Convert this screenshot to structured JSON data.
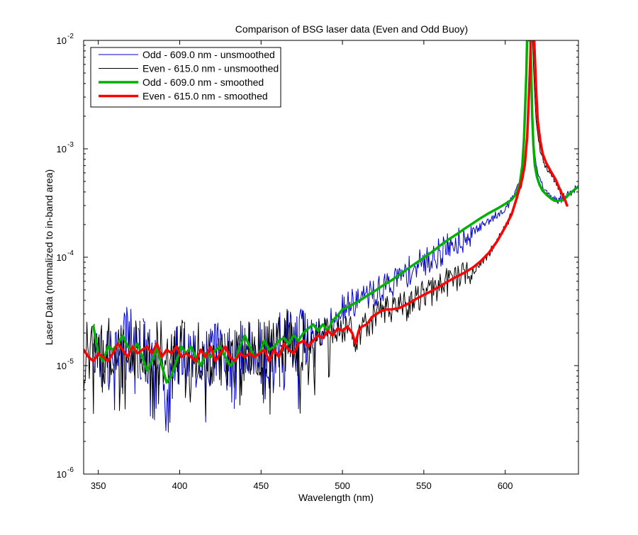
{
  "chart_data": {
    "type": "line",
    "title": "Comparison of BSG laser data (Even and Odd Buoy)",
    "xlabel": "Wavelength (nm)",
    "ylabel": "Laser Data (normalized to in-band area)",
    "xlim": [
      341,
      645
    ],
    "ylim": [
      1e-06,
      0.01
    ],
    "yscale": "log",
    "x_ticks": [
      350,
      400,
      450,
      500,
      550,
      600
    ],
    "y_ticks": [
      {
        "value": 1e-06,
        "base": "10",
        "exp": "-6"
      },
      {
        "value": 1e-05,
        "base": "10",
        "exp": "-5"
      },
      {
        "value": 0.0001,
        "base": "10",
        "exp": "-4"
      },
      {
        "value": 0.001,
        "base": "10",
        "exp": "-3"
      },
      {
        "value": 0.01,
        "base": "10",
        "exp": "-2"
      }
    ],
    "grid": false,
    "legend": "top-left",
    "series": [
      {
        "name": "Odd - 609.0 nm - unsmoothed",
        "color": "#0000cc",
        "width": 1,
        "noisy": true,
        "seed": 7,
        "x": [
          347,
          352,
          357,
          362,
          367,
          372,
          377,
          382,
          387,
          392,
          397,
          402,
          407,
          412,
          417,
          422,
          427,
          432,
          437,
          442,
          447,
          452,
          457,
          462,
          467,
          472,
          477,
          482,
          487,
          492,
          497,
          502,
          507,
          512,
          517,
          522,
          527,
          532,
          537,
          542,
          547,
          552,
          557,
          562,
          567,
          572,
          577,
          582,
          587,
          592,
          597,
          602,
          606,
          609,
          611,
          612,
          612.8,
          613.3,
          613.7,
          614.1,
          614.5,
          615,
          615.6,
          616.3,
          617.2,
          618.5,
          620,
          622,
          625,
          628,
          632,
          636,
          640,
          645
        ],
        "values": [
          2.3e-05,
          1.1e-05,
          1.2e-05,
          1.5e-05,
          1.8e-05,
          1.6e-05,
          1.4e-05,
          1.3e-05,
          8e-06,
          7e-06,
          1.2e-05,
          1.4e-05,
          1.1e-05,
          1.3e-05,
          1.2e-05,
          1.4e-05,
          1.2e-05,
          1.1e-05,
          1.3e-05,
          1.5e-05,
          1.7e-05,
          1.5e-05,
          1.4e-05,
          1.6e-05,
          1.8e-05,
          1.7e-05,
          2e-05,
          2.3e-05,
          2.1e-05,
          2.6e-05,
          3.1e-05,
          3.4e-05,
          3.8e-05,
          4.2e-05,
          4.5e-05,
          4.8e-05,
          5.5e-05,
          6e-05,
          6.8e-05,
          7.6e-05,
          8.5e-05,
          9.3e-05,
          0.000105,
          0.000115,
          0.00013,
          0.000145,
          0.00016,
          0.00018,
          0.0002,
          0.00023,
          0.00026,
          0.00031,
          0.0004,
          0.0005,
          0.0008,
          0.0015,
          0.003,
          0.006,
          0.01,
          0.01,
          0.01,
          0.01,
          0.006,
          0.0025,
          0.0013,
          0.0008,
          0.0006,
          0.00048,
          0.0004,
          0.00035,
          0.00033,
          0.00035,
          0.0004,
          0.00045
        ]
      },
      {
        "name": "Even - 615.0 nm - unsmoothed",
        "color": "#000000",
        "width": 1,
        "noisy": true,
        "seed": 19,
        "x": [
          341,
          346,
          351,
          356,
          361,
          366,
          371,
          376,
          381,
          386,
          391,
          396,
          401,
          406,
          411,
          416,
          421,
          426,
          431,
          436,
          441,
          446,
          451,
          456,
          461,
          466,
          471,
          476,
          481,
          486,
          491,
          496,
          501,
          506,
          509,
          511,
          516,
          521,
          526,
          531,
          536,
          541,
          546,
          551,
          556,
          561,
          566,
          571,
          576,
          581,
          586,
          591,
          596,
          601,
          606,
          610,
          612,
          613.5,
          614.5,
          615.3,
          615.8,
          616.3,
          616.8,
          617.3,
          618,
          619,
          620.5,
          622,
          625,
          628,
          632,
          636,
          638
        ],
        "values": [
          1.4e-05,
          1.2e-05,
          1.3e-05,
          1.4e-05,
          1.2e-05,
          1.3e-05,
          1.5e-05,
          1.4e-05,
          1.3e-05,
          1.5e-05,
          1.3e-05,
          1.2e-05,
          1.4e-05,
          1.2e-05,
          1.3e-05,
          1.3e-05,
          1.2e-05,
          1.3e-05,
          1.2e-05,
          1.3e-05,
          1.4e-05,
          1.3e-05,
          1.5e-05,
          1.4e-05,
          1.6e-05,
          1.7e-05,
          1.5e-05,
          1.7e-05,
          1.8e-05,
          1.9e-05,
          2e-05,
          2.2e-05,
          2.1e-05,
          2.3e-05,
          1.5e-05,
          2e-05,
          2.5e-05,
          2.9e-05,
          3.2e-05,
          3.4e-05,
          3.4e-05,
          3.6e-05,
          4.2e-05,
          4.6e-05,
          5e-05,
          5.5e-05,
          6.2e-05,
          6.6e-05,
          7e-05,
          7.6e-05,
          9e-05,
          0.000115,
          0.00015,
          0.0002,
          0.0003,
          0.00045,
          0.00065,
          0.0012,
          0.003,
          0.006,
          0.01,
          0.01,
          0.01,
          0.006,
          0.0035,
          0.0018,
          0.0012,
          0.0009,
          0.0007,
          0.0006,
          0.00046,
          0.00036,
          0.0003
        ]
      },
      {
        "name": "Odd - 609.0 nm - smoothed",
        "color": "#00b000",
        "width": 3.5,
        "noisy": false,
        "x": [
          347,
          350,
          353,
          356,
          359,
          362,
          365,
          368,
          371,
          374,
          377,
          380,
          383,
          386,
          389,
          392,
          395,
          398,
          401,
          404,
          407,
          410,
          413,
          416,
          419,
          422,
          425,
          428,
          431,
          434,
          437,
          440,
          443,
          446,
          449,
          452,
          455,
          458,
          461,
          464,
          467,
          470,
          473,
          476,
          479,
          482,
          485,
          488,
          491,
          494,
          497,
          500,
          504,
          508,
          512,
          516,
          520,
          525,
          530,
          535,
          540,
          545,
          550,
          555,
          560,
          565,
          570,
          575,
          580,
          585,
          590,
          595,
          600,
          604,
          607,
          609,
          610.5,
          611.5,
          612.3,
          613,
          613.6,
          614.2,
          614.8,
          615.4,
          616,
          616.6,
          617.3,
          618.2,
          619.5,
          621,
          623,
          626,
          629,
          632,
          636,
          640,
          645
        ],
        "values": [
          2.3e-05,
          1.3e-05,
          1.1e-05,
          1.5e-05,
          1.4e-05,
          1.6e-05,
          1.9e-05,
          1.5e-05,
          1.4e-05,
          1.6e-05,
          1.2e-05,
          9e-06,
          1.1e-05,
          1.5e-05,
          1e-05,
          7e-06,
          8e-06,
          1.1e-05,
          1.5e-05,
          1.3e-05,
          1.5e-05,
          1.2e-05,
          1e-05,
          1.3e-05,
          1.2e-05,
          1.4e-05,
          1.5e-05,
          1.2e-05,
          1e-05,
          1.1e-05,
          1.5e-05,
          1.9e-05,
          1.5e-05,
          1.2e-05,
          1.3e-05,
          1.7e-05,
          1.4e-05,
          1.5e-05,
          1.7e-05,
          1.8e-05,
          1.6e-05,
          1.9e-05,
          1.7e-05,
          2e-05,
          2.2e-05,
          2.4e-05,
          2.1e-05,
          2.4e-05,
          2.1e-05,
          2.6e-05,
          2.9e-05,
          3.3e-05,
          3.5e-05,
          3.8e-05,
          4.1e-05,
          4.5e-05,
          4.9e-05,
          5.5e-05,
          6.1e-05,
          6.9e-05,
          7.8e-05,
          8.8e-05,
          9.9e-05,
          0.000112,
          0.000128,
          0.000145,
          0.000162,
          0.000183,
          0.000205,
          0.00023,
          0.000255,
          0.00028,
          0.00031,
          0.00034,
          0.00039,
          0.00048,
          0.0007,
          0.0012,
          0.0025,
          0.005,
          0.01,
          0.01,
          0.01,
          0.01,
          0.005,
          0.002,
          0.0011,
          0.0007,
          0.00055,
          0.00047,
          0.00041,
          0.00037,
          0.00034,
          0.00033,
          0.00034,
          0.00039,
          0.00045
        ]
      },
      {
        "name": "Even - 615.0 nm - smoothed",
        "color": "#ff0000",
        "width": 3.5,
        "noisy": false,
        "x": [
          341,
          344,
          347,
          350,
          353,
          356,
          359,
          362,
          365,
          368,
          371,
          374,
          377,
          380,
          383,
          386,
          389,
          392,
          395,
          398,
          401,
          404,
          407,
          410,
          413,
          416,
          419,
          422,
          425,
          428,
          431,
          434,
          437,
          440,
          443,
          446,
          449,
          452,
          455,
          458,
          461,
          464,
          467,
          470,
          473,
          476,
          479,
          482,
          485,
          488,
          491,
          494,
          497,
          500,
          503,
          506,
          508,
          510,
          512,
          515,
          518,
          521,
          524,
          527,
          530,
          535,
          540,
          545,
          550,
          555,
          560,
          565,
          570,
          575,
          580,
          585,
          590,
          595,
          600,
          604,
          607,
          610,
          612,
          613.5,
          614.5,
          615.3,
          616,
          616.8,
          617.5,
          618.2,
          619,
          620,
          621.5,
          623,
          625,
          628,
          631,
          634,
          637,
          638
        ],
        "values": [
          1.4e-05,
          1.2e-05,
          1.1e-05,
          1.3e-05,
          1.2e-05,
          1.1e-05,
          1.3e-05,
          1.6e-05,
          1.4e-05,
          1.2e-05,
          1.5e-05,
          1.3e-05,
          1.4e-05,
          1.5e-05,
          1.3e-05,
          1.6e-05,
          1.2e-05,
          1.4e-05,
          1.3e-05,
          1.5e-05,
          1.2e-05,
          1.3e-05,
          1.2e-05,
          1.1e-05,
          1.4e-05,
          1.2e-05,
          1.5e-05,
          1.1e-05,
          1.3e-05,
          1.5e-05,
          1.2e-05,
          1.1e-05,
          1.3e-05,
          1.2e-05,
          1.3e-05,
          1.2e-05,
          1.3e-05,
          1.4e-05,
          1.1e-05,
          1.4e-05,
          1.2e-05,
          1.6e-05,
          1.4e-05,
          1.3e-05,
          1.6e-05,
          1.7e-05,
          1.5e-05,
          1.7e-05,
          1.9e-05,
          1.8e-05,
          2.1e-05,
          1.9e-05,
          2.2e-05,
          2.1e-05,
          2.3e-05,
          2e-05,
          1.6e-05,
          2.1e-05,
          2.3e-05,
          2.4e-05,
          2.8e-05,
          3e-05,
          3.2e-05,
          3.3e-05,
          3.3e-05,
          3.4e-05,
          3.7e-05,
          4.1e-05,
          4.5e-05,
          4.9e-05,
          5.4e-05,
          6e-05,
          6.6e-05,
          7.2e-05,
          8e-05,
          9.2e-05,
          0.00011,
          0.00014,
          0.00019,
          0.00025,
          0.00035,
          0.0005,
          0.0007,
          0.0013,
          0.003,
          0.006,
          0.01,
          0.01,
          0.01,
          0.007,
          0.0035,
          0.0018,
          0.0012,
          0.0009,
          0.00075,
          0.00062,
          0.00052,
          0.00041,
          0.00033,
          0.0003
        ]
      }
    ]
  }
}
